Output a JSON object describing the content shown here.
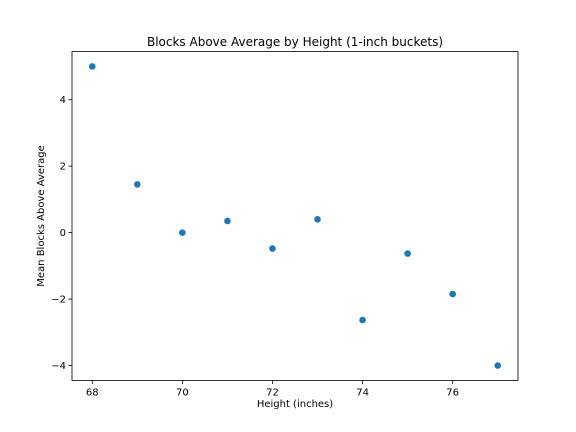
{
  "chart_data": {
    "type": "scatter",
    "title": "Blocks Above Average by Height (1-inch buckets)",
    "xlabel": "Height (inches)",
    "ylabel": "Mean Blocks Above Average",
    "xlim": [
      67.55,
      77.45
    ],
    "ylim": [
      -4.45,
      5.45
    ],
    "xticks": [
      68,
      70,
      72,
      74,
      76
    ],
    "yticks": [
      -4,
      -2,
      0,
      2,
      4
    ],
    "xtick_labels": [
      "68",
      "70",
      "72",
      "74",
      "76"
    ],
    "ytick_labels": [
      "−4",
      "−2",
      "0",
      "2",
      "4"
    ],
    "grid": false,
    "marker_color": "#1f77b4",
    "points": [
      {
        "x": 68,
        "y": 5.0
      },
      {
        "x": 69,
        "y": 1.45
      },
      {
        "x": 70,
        "y": 0.0
      },
      {
        "x": 71,
        "y": 0.35
      },
      {
        "x": 72,
        "y": -0.48
      },
      {
        "x": 73,
        "y": 0.4
      },
      {
        "x": 74,
        "y": -2.63
      },
      {
        "x": 75,
        "y": -0.63
      },
      {
        "x": 76,
        "y": -1.85
      },
      {
        "x": 77,
        "y": -4.0
      }
    ]
  }
}
